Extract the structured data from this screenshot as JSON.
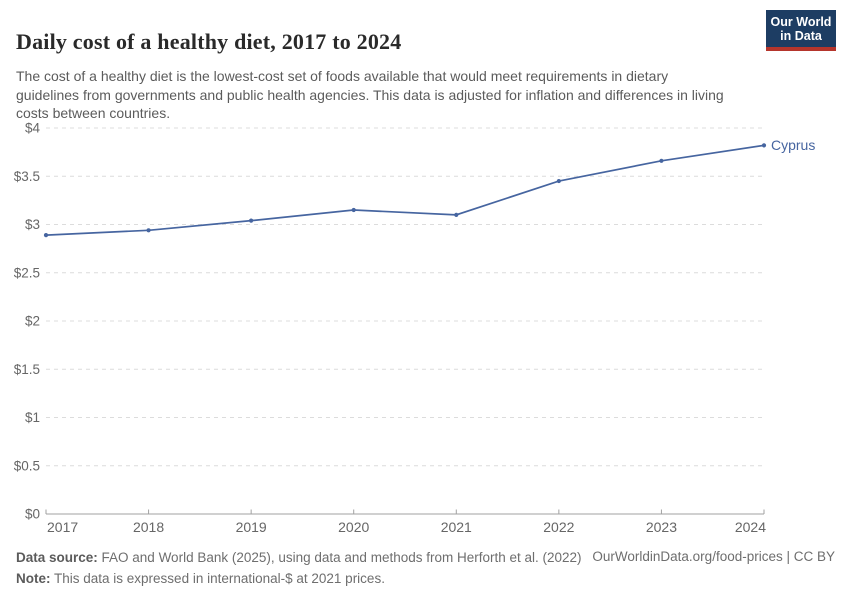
{
  "header": {
    "title": "Daily cost of a healthy diet, 2017 to 2024",
    "subtitle": "The cost of a healthy diet is the lowest-cost set of foods available that would meet requirements in dietary guidelines from governments and public health agencies. This data is adjusted for inflation and differences in living costs between countries.",
    "logo_line1": "Our World",
    "logo_line2": "in Data"
  },
  "chart_data": {
    "type": "line",
    "title": "Daily cost of a healthy diet, 2017 to 2024",
    "x": [
      2017,
      2018,
      2019,
      2020,
      2021,
      2022,
      2023,
      2024
    ],
    "series": [
      {
        "name": "Cyprus",
        "values": [
          2.89,
          2.94,
          3.04,
          3.15,
          3.1,
          3.45,
          3.66,
          3.82
        ],
        "color": "#4665a0"
      }
    ],
    "ylim": [
      0,
      4
    ],
    "yticks": [
      [
        0,
        "$0"
      ],
      [
        0.5,
        "$0.5"
      ],
      [
        1,
        "$1"
      ],
      [
        1.5,
        "$1.5"
      ],
      [
        2,
        "$2"
      ],
      [
        2.5,
        "$2.5"
      ],
      [
        3,
        "$3"
      ],
      [
        3.5,
        "$3.5"
      ],
      [
        4,
        "$4"
      ]
    ],
    "unit_prefix": "$",
    "grid": "horizontal-dashed",
    "legend": "end-of-line-label"
  },
  "colors": {
    "line": "#4665a0",
    "grid": "#dcdcdc",
    "axis": "#a1a1a1",
    "tick_text": "#666666",
    "logo_bg": "#1d3d63",
    "logo_bar": "#b5352c"
  },
  "footer": {
    "datasource_label": "Data source:",
    "datasource_text": " FAO and World Bank (2025), using data and methods from Herforth et al. (2022)",
    "note_label": "Note:",
    "note_text": " This data is expressed in international-$ at 2021 prices.",
    "link": "OurWorldinData.org/food-prices | CC BY"
  }
}
